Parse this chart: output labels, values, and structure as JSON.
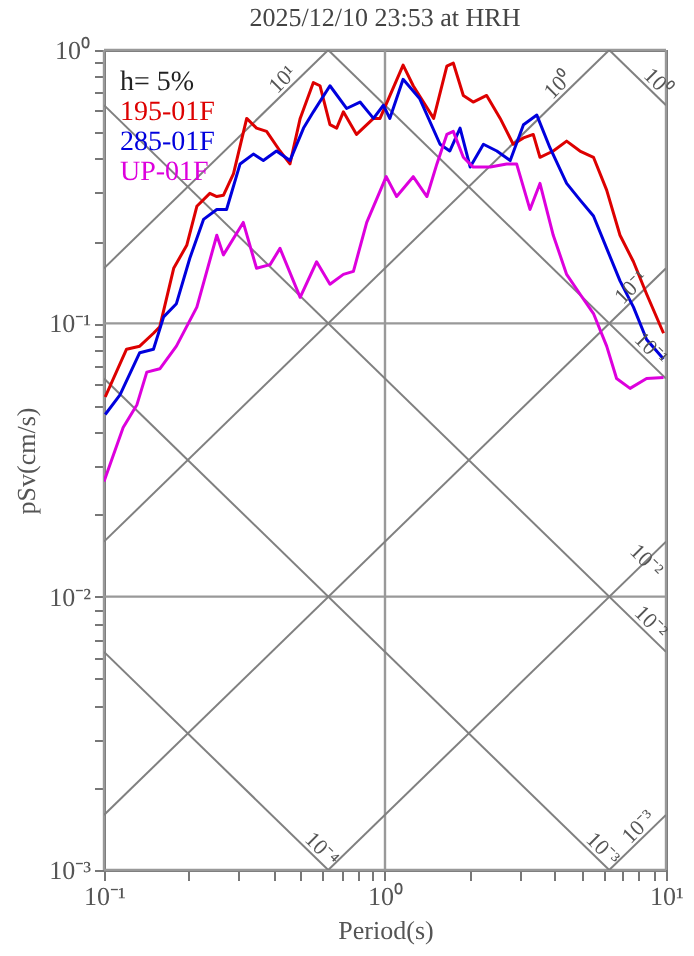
{
  "chart_data": {
    "type": "line",
    "title": "2025/12/10 23:53 at HRH",
    "xlabel": "Period(s)",
    "ylabel": "pSv(cm/s)",
    "legend_title": "h= 5%",
    "legend": "top left",
    "grid": true,
    "log": "xy",
    "xlim": [
      0.1,
      10
    ],
    "ylim": [
      0.001,
      1
    ],
    "xticks": [
      {
        "value": 0.1,
        "label": "10⁻¹"
      },
      {
        "value": 0.2,
        "label": null
      },
      {
        "value": 0.3,
        "label": null
      },
      {
        "value": 0.4,
        "label": null
      },
      {
        "value": 0.5,
        "label": null
      },
      {
        "value": 0.6,
        "label": null
      },
      {
        "value": 0.7,
        "label": null
      },
      {
        "value": 0.8,
        "label": null
      },
      {
        "value": 0.9,
        "label": null
      },
      {
        "value": 1,
        "label": "10⁰"
      },
      {
        "value": 2,
        "label": null
      },
      {
        "value": 3,
        "label": null
      },
      {
        "value": 4,
        "label": null
      },
      {
        "value": 5,
        "label": null
      },
      {
        "value": 6,
        "label": null
      },
      {
        "value": 7,
        "label": null
      },
      {
        "value": 8,
        "label": null
      },
      {
        "value": 9,
        "label": null
      },
      {
        "value": 10,
        "label": "10¹"
      }
    ],
    "yticks": [
      {
        "value": 0.001,
        "label": "10⁻³"
      },
      {
        "value": 0.002,
        "label": null
      },
      {
        "value": 0.003,
        "label": null
      },
      {
        "value": 0.004,
        "label": null
      },
      {
        "value": 0.005,
        "label": null
      },
      {
        "value": 0.006,
        "label": null
      },
      {
        "value": 0.007,
        "label": null
      },
      {
        "value": 0.008,
        "label": null
      },
      {
        "value": 0.009,
        "label": null
      },
      {
        "value": 0.01,
        "label": "10⁻²"
      },
      {
        "value": 0.02,
        "label": null
      },
      {
        "value": 0.03,
        "label": null
      },
      {
        "value": 0.04,
        "label": null
      },
      {
        "value": 0.05,
        "label": null
      },
      {
        "value": 0.06,
        "label": null
      },
      {
        "value": 0.07,
        "label": null
      },
      {
        "value": 0.08,
        "label": null
      },
      {
        "value": 0.09,
        "label": null
      },
      {
        "value": 0.1,
        "label": "10⁻¹"
      },
      {
        "value": 0.2,
        "label": null
      },
      {
        "value": 0.3,
        "label": null
      },
      {
        "value": 0.4,
        "label": null
      },
      {
        "value": 0.5,
        "label": null
      },
      {
        "value": 0.6,
        "label": null
      },
      {
        "value": 0.7,
        "label": null
      },
      {
        "value": 0.8,
        "label": null
      },
      {
        "value": 0.9,
        "label": null
      },
      {
        "value": 1,
        "label": "10⁰"
      }
    ],
    "series": [
      {
        "type": "line",
        "color": "#808080",
        "x": [
          0.1,
          0.628
        ],
        "values": [
          0.159,
          1
        ]
      },
      {
        "type": "line",
        "color": "#808080",
        "x": [
          0.1,
          6.28
        ],
        "values": [
          0.0159,
          1
        ]
      },
      {
        "type": "line",
        "color": "#808080",
        "x": [
          0.1,
          10
        ],
        "values": [
          0.00159,
          0.159
        ]
      },
      {
        "type": "line",
        "color": "#808080",
        "x": [
          0.628,
          10
        ],
        "values": [
          0.001,
          0.0159
        ]
      },
      {
        "type": "line",
        "color": "#808080",
        "x": [
          6.28,
          10
        ],
        "values": [
          0.001,
          0.00159
        ]
      },
      {
        "type": "line",
        "color": "#808080",
        "x": [
          6.28,
          10
        ],
        "values": [
          1,
          0.628
        ]
      },
      {
        "type": "line",
        "color": "#808080",
        "x": [
          0.628,
          10
        ],
        "values": [
          1,
          0.0628
        ]
      },
      {
        "type": "line",
        "color": "#808080",
        "x": [
          0.1,
          10
        ],
        "values": [
          0.628,
          0.00628
        ]
      },
      {
        "type": "line",
        "color": "#808080",
        "x": [
          0.1,
          6.28
        ],
        "values": [
          0.0628,
          0.001
        ]
      },
      {
        "type": "line",
        "color": "#808080",
        "x": [
          0.1,
          0.628
        ],
        "values": [
          0.00628,
          0.001
        ]
      },
      {
        "name": "195-01F",
        "color": "#dd0000",
        "x": [
          0.101,
          0.1203,
          0.134,
          0.15,
          0.158,
          0.177,
          0.197,
          0.214,
          0.238,
          0.252,
          0.266,
          0.289,
          0.322,
          0.349,
          0.379,
          0.423,
          0.459,
          0.499,
          0.556,
          0.587,
          0.637,
          0.673,
          0.711,
          0.792,
          0.91,
          0.96,
          1.16,
          1.26,
          1.49,
          1.66,
          1.75,
          1.9,
          2.06,
          2.3,
          2.57,
          2.86,
          3.11,
          3.37,
          3.56,
          3.97,
          4.43,
          4.94,
          5.52,
          6.15,
          6.86,
          7.66,
          8.53,
          9.8
        ],
        "values": [
          0.0538,
          0.0804,
          0.0825,
          0.092,
          0.0972,
          0.159,
          0.193,
          0.268,
          0.299,
          0.291,
          0.294,
          0.353,
          0.562,
          0.518,
          0.504,
          0.427,
          0.383,
          0.562,
          0.76,
          0.74,
          0.533,
          0.518,
          0.594,
          0.491,
          0.562,
          0.562,
          0.881,
          0.74,
          0.562,
          0.873,
          0.896,
          0.682,
          0.645,
          0.682,
          0.562,
          0.452,
          0.477,
          0.491,
          0.405,
          0.427,
          0.464,
          0.427,
          0.405,
          0.307,
          0.21,
          0.168,
          0.128,
          0.092
        ]
      },
      {
        "name": "285-01F",
        "color": "#0000dd",
        "x": [
          0.101,
          0.114,
          0.134,
          0.15,
          0.163,
          0.181,
          0.202,
          0.226,
          0.252,
          0.273,
          0.305,
          0.34,
          0.369,
          0.411,
          0.459,
          0.513,
          0.556,
          0.637,
          0.73,
          0.815,
          0.91,
          0.987,
          1.04,
          1.16,
          1.33,
          1.57,
          1.7,
          1.85,
          2.01,
          2.24,
          2.5,
          2.79,
          3.11,
          3.47,
          3.86,
          4.43,
          4.94,
          5.52,
          6.15,
          6.86,
          7.66,
          8.53,
          9.8
        ],
        "values": [
          0.0464,
          0.0547,
          0.0781,
          0.0804,
          0.1056,
          0.118,
          0.173,
          0.24,
          0.261,
          0.261,
          0.383,
          0.416,
          0.394,
          0.427,
          0.394,
          0.518,
          0.594,
          0.74,
          0.611,
          0.645,
          0.562,
          0.628,
          0.562,
          0.781,
          0.663,
          0.452,
          0.427,
          0.518,
          0.373,
          0.452,
          0.427,
          0.394,
          0.533,
          0.578,
          0.44,
          0.325,
          0.283,
          0.247,
          0.188,
          0.143,
          0.1146,
          0.0873,
          0.074
        ]
      },
      {
        "name": "UP-01F",
        "color": "#dd00dd",
        "x": [
          0.1,
          0.117,
          0.131,
          0.142,
          0.158,
          0.181,
          0.214,
          0.252,
          0.266,
          0.313,
          0.349,
          0.39,
          0.423,
          0.499,
          0.571,
          0.637,
          0.711,
          0.772,
          0.861,
          1.01,
          1.1,
          1.26,
          1.41,
          1.53,
          1.66,
          1.75,
          1.9,
          2.06,
          2.37,
          2.71,
          2.94,
          3.28,
          3.56,
          3.97,
          4.43,
          4.94,
          5.52,
          6.15,
          6.67,
          7.45,
          8.53,
          9.8
        ],
        "values": [
          0.0264,
          0.0416,
          0.0504,
          0.0663,
          0.0682,
          0.0825,
          0.1146,
          0.21,
          0.178,
          0.234,
          0.159,
          0.164,
          0.188,
          0.1245,
          0.168,
          0.139,
          0.151,
          0.155,
          0.234,
          0.344,
          0.291,
          0.344,
          0.291,
          0.383,
          0.491,
          0.504,
          0.405,
          0.373,
          0.373,
          0.383,
          0.383,
          0.261,
          0.325,
          0.21,
          0.151,
          0.128,
          0.1086,
          0.0825,
          0.0628,
          0.0578,
          0.0628,
          0.0634
        ]
      }
    ],
    "annotations": [
      {
        "text": "10¹",
        "x": 0.46,
        "y": 0.732
      },
      {
        "text": "10⁰",
        "x": 4.4,
        "y": 0.7
      },
      {
        "text": "10⁰",
        "x": 8.8,
        "y": 0.714
      },
      {
        "text": "10⁻¹",
        "x": 8.0,
        "y": 0.127
      },
      {
        "text": "10⁻¹",
        "x": 8.3,
        "y": 0.0757
      },
      {
        "text": "10⁻²",
        "x": 8.0,
        "y": 0.0127
      },
      {
        "text": "10⁻²",
        "x": 8.3,
        "y": 0.00757
      },
      {
        "text": "10⁻³",
        "x": 8.5,
        "y": 0.00135
      },
      {
        "text": "10⁻³",
        "x": 5.6,
        "y": 0.00112
      },
      {
        "text": "10⁻⁴",
        "x": 0.56,
        "y": 0.00112
      }
    ]
  }
}
